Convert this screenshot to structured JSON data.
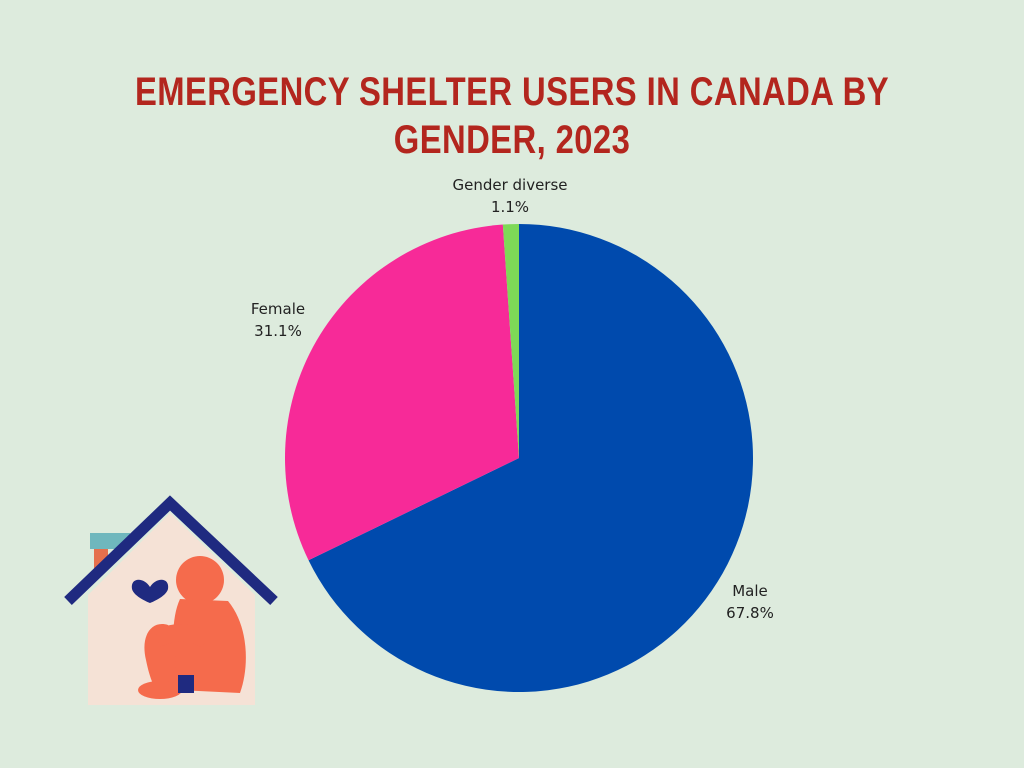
{
  "title": "EMERGENCY SHELTER USERS IN CANADA BY GENDER, 2023",
  "chart_data": {
    "type": "pie",
    "title": "EMERGENCY SHELTER USERS IN CANADA BY GENDER, 2023",
    "start_angle_deg": 0,
    "direction": "clockwise",
    "slices": [
      {
        "label": "Male",
        "value": 67.8,
        "display": "67.8%",
        "color": "#004aad"
      },
      {
        "label": "Female",
        "value": 31.1,
        "display": "31.1%",
        "color": "#f72a98"
      },
      {
        "label": "Gender diverse",
        "value": 1.1,
        "display": "1.1%",
        "color": "#7ed957"
      }
    ]
  },
  "illustration": {
    "icon": "house-with-sitting-person-icon",
    "colors": {
      "roof": "#1f2a80",
      "wall": "#f5e2d6",
      "chimney": "#6fb7bd",
      "person": "#f56b4c",
      "heart": "#1f2a80"
    }
  }
}
